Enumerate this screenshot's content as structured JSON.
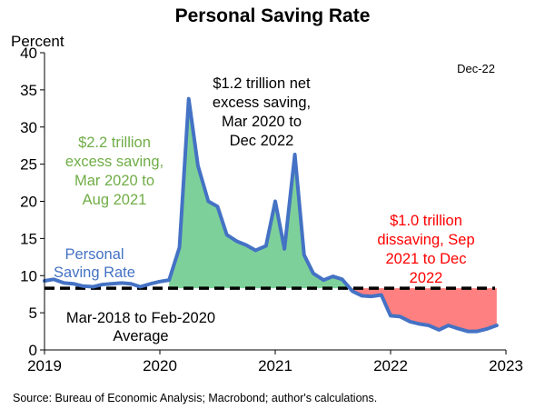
{
  "chart_data": {
    "type": "area",
    "title": "Personal Saving Rate",
    "ylabel": "Percent",
    "xlabel": "",
    "ylim": [
      0,
      40
    ],
    "yticks": [
      0,
      5,
      10,
      15,
      20,
      25,
      30,
      35,
      40
    ],
    "xlim": [
      2019,
      2023
    ],
    "xticks": [
      "2019",
      "2020",
      "2021",
      "2022",
      "2023"
    ],
    "period_label": "Dec-22",
    "series": [
      {
        "name": "Personal Saving Rate",
        "color": "#4472C4",
        "x": [
          2019.0,
          2019.08,
          2019.17,
          2019.25,
          2019.33,
          2019.42,
          2019.5,
          2019.58,
          2019.67,
          2019.75,
          2019.83,
          2019.92,
          2020.0,
          2020.08,
          2020.17,
          2020.25,
          2020.33,
          2020.42,
          2020.5,
          2020.58,
          2020.67,
          2020.75,
          2020.83,
          2020.92,
          2021.0,
          2021.08,
          2021.17,
          2021.25,
          2021.33,
          2021.42,
          2021.5,
          2021.58,
          2021.67,
          2021.75,
          2021.83,
          2021.92,
          2022.0,
          2022.08,
          2022.17,
          2022.25,
          2022.33,
          2022.42,
          2022.5,
          2022.58,
          2022.67,
          2022.75,
          2022.83,
          2022.92
        ],
        "values": [
          9.3,
          9.5,
          9.0,
          8.9,
          8.6,
          8.5,
          8.8,
          8.9,
          9.0,
          8.9,
          8.5,
          8.9,
          9.2,
          9.4,
          13.8,
          33.8,
          24.8,
          20.0,
          19.3,
          15.5,
          14.6,
          14.1,
          13.4,
          14.0,
          20.0,
          13.6,
          26.3,
          12.8,
          10.3,
          9.4,
          9.9,
          9.5,
          7.9,
          7.3,
          7.2,
          7.4,
          4.6,
          4.5,
          3.8,
          3.5,
          3.3,
          2.7,
          3.3,
          2.9,
          2.5,
          2.5,
          2.8,
          3.3
        ]
      },
      {
        "name": "Mar-2018 to Feb-2020 Average",
        "color": "#000000",
        "style": "dashed",
        "value": 8.3
      }
    ],
    "fills": [
      {
        "label": "excess saving",
        "color": "#7ED09A",
        "x_range": [
          2020.08,
          2021.67
        ]
      },
      {
        "label": "dissaving",
        "color": "#FF8080",
        "x_range": [
          2021.67,
          2022.92
        ]
      }
    ],
    "annotations": [
      {
        "lines": [
          "$2.2 trillion",
          "excess saving,",
          "Mar 2020 to",
          "Aug 2021"
        ],
        "color": "#70AD47"
      },
      {
        "lines": [
          "$1.2 trillion net",
          "excess saving,",
          "Mar 2020 to",
          "Dec 2022"
        ],
        "color": "#000000"
      },
      {
        "lines": [
          "$1.0 trillion",
          "dissaving, Sep",
          "2021 to Dec",
          "2022"
        ],
        "color": "#FF0000"
      },
      {
        "lines": [
          "Personal",
          "Saving Rate"
        ],
        "color": "#4472C4"
      },
      {
        "lines": [
          "Mar-2018 to Feb-2020",
          "Average"
        ],
        "color": "#000000"
      }
    ],
    "legend": "none",
    "grid": false
  },
  "source": "Source: Bureau of Economic Analysis; Macrobond; author's calculations."
}
